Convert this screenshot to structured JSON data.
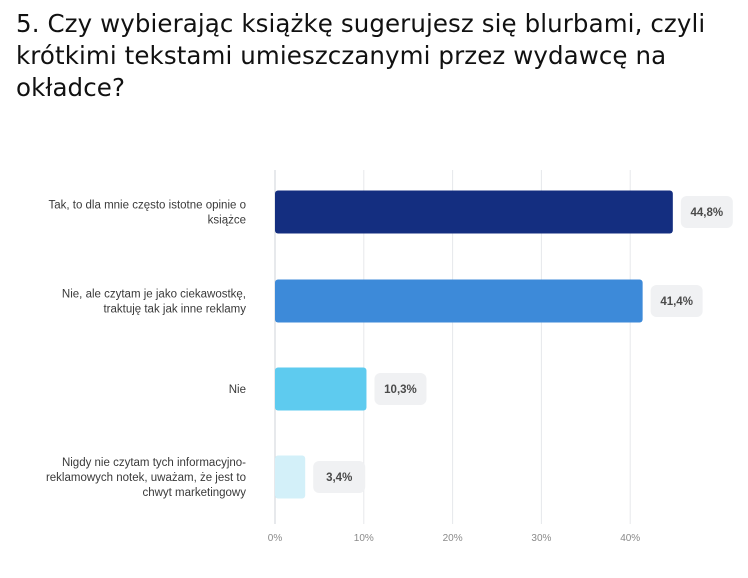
{
  "question": {
    "title": "5. Czy wybierając książkę sugerujesz się blurbami, czyli krótkimi tekstami umieszczanymi przez wydawcę na okładce?"
  },
  "chart_data": {
    "type": "bar",
    "orientation": "horizontal",
    "title": "",
    "xlabel": "",
    "ylabel": "",
    "categories": [
      "Tak, to dla mnie często istotne opinie o książce",
      "Nie, ale czytam je jako ciekawostkę, traktuję tak jak inne reklamy",
      "Nie",
      "Nigdy nie czytam tych informacyjno-reklamowych notek, uważam, że jest to chwyt marketingowy"
    ],
    "category_label_lines": [
      [
        "Tak, to dla mnie często istotne opinie o",
        "książce"
      ],
      [
        "Nie, ale czytam je jako ciekawostkę,",
        "traktuję tak jak inne reklamy"
      ],
      [
        "Nie"
      ],
      [
        "Nigdy nie czytam tych informacyjno-",
        "reklamowych notek, uważam, że jest to",
        "chwyt marketingowy"
      ]
    ],
    "values": [
      44.8,
      41.4,
      10.3,
      3.4
    ],
    "value_labels": [
      "44,8%",
      "41,4%",
      "10,3%",
      "3,4%"
    ],
    "bar_colors": [
      "#142e80",
      "#3d8ad9",
      "#5ecbef",
      "#d3f0f9"
    ],
    "xlim": [
      0,
      45
    ],
    "xticks": [
      0,
      10,
      20,
      30,
      40
    ],
    "xtick_labels": [
      "0%",
      "10%",
      "20%",
      "30%",
      "40%"
    ],
    "grid": true,
    "legend": "none"
  }
}
